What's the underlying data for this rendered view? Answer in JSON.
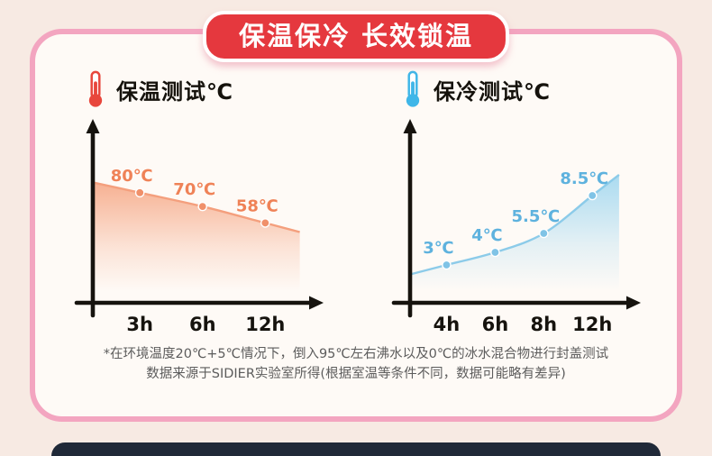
{
  "badge": {
    "label": "保温保冷 长效锁温"
  },
  "theme": {
    "page_bg": "#f7eae3",
    "card_bg": "#fefaf6",
    "frame_pink": "#f3a5c0",
    "badge_red": "#e5383e",
    "badge_text": "#ffffff",
    "axis_black": "#16130e",
    "footnote_gray": "#5c5c5c",
    "next_section_dark": "#202938"
  },
  "chart_data": [
    {
      "type": "area",
      "title": "保温测试℃",
      "icon": "thermometer-hot-icon",
      "categories": [
        "3h",
        "6h",
        "12h"
      ],
      "values": [
        80,
        70,
        58
      ],
      "value_labels": [
        "80℃",
        "70℃",
        "58℃"
      ],
      "xlabel": "",
      "ylabel": "",
      "ylim": [
        0,
        110
      ],
      "grid": false,
      "legend": "none",
      "colors": {
        "area": "#f6ad8d",
        "line": "#f49f7d",
        "point": "#f0906a",
        "label": "#ef8257",
        "icon": "#e8463c"
      }
    },
    {
      "type": "area",
      "title": "保冷测试℃",
      "icon": "thermometer-cold-icon",
      "categories": [
        "4h",
        "6h",
        "8h",
        "12h"
      ],
      "values": [
        3,
        4,
        5.5,
        8.5
      ],
      "value_labels": [
        "3℃",
        "4℃",
        "5.5℃",
        "8.5℃"
      ],
      "xlabel": "",
      "ylabel": "",
      "ylim": [
        0,
        12
      ],
      "grid": false,
      "legend": "none",
      "colors": {
        "area": "#a6d9f0",
        "line": "#8ccbe9",
        "point": "#7fc3e6",
        "label": "#5eb2de",
        "icon": "#3fb6e8"
      }
    }
  ],
  "footnote": {
    "lines": [
      "*在环境温度20℃+5℃情况下，倒入95℃左右沸水以及0℃的冰水混合物进行封盖测试",
      "数据来源于SIDIER实验室所得(根据室温等条件不同，数据可能略有差异)"
    ]
  }
}
